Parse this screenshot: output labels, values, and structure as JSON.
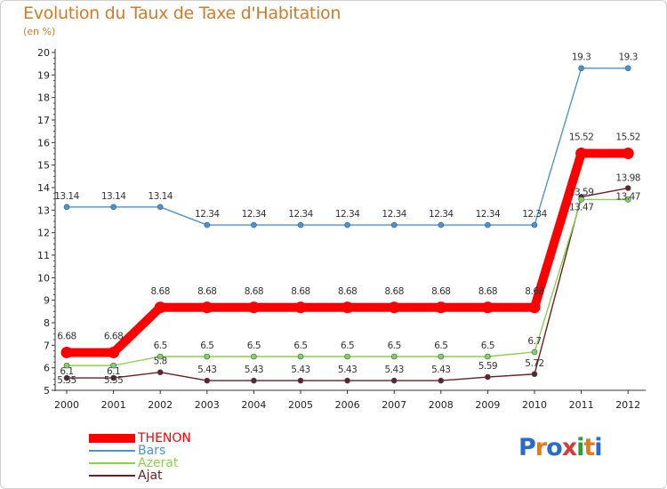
{
  "chart_data": {
    "type": "line",
    "title": "Evolution du Taux de Taxe d'Habitation",
    "subtitle": "(en %)",
    "xlabel": "",
    "ylabel": "",
    "x": [
      "2000",
      "2001",
      "2002",
      "2003",
      "2004",
      "2005",
      "2006",
      "2007",
      "2008",
      "2009",
      "2010",
      "2011",
      "2012"
    ],
    "ylim": [
      5,
      20
    ],
    "yticks": [
      5,
      6,
      7,
      8,
      9,
      10,
      11,
      12,
      13,
      14,
      15,
      16,
      17,
      18,
      19,
      20
    ],
    "series": [
      {
        "name": "THENON",
        "color": "#ff0000",
        "values": [
          6.68,
          6.68,
          8.68,
          8.68,
          8.68,
          8.68,
          8.68,
          8.68,
          8.68,
          8.68,
          8.68,
          15.52,
          15.52
        ],
        "labels": [
          "6.68",
          "6.68",
          "8.68",
          "8.68",
          "8.68",
          "8.68",
          "8.68",
          "8.68",
          "8.68",
          "8.68",
          "8.68",
          "15.52",
          "15.52"
        ]
      },
      {
        "name": "Bars",
        "color": "#4f93c9",
        "values": [
          13.14,
          13.14,
          13.14,
          12.34,
          12.34,
          12.34,
          12.34,
          12.34,
          12.34,
          12.34,
          12.34,
          19.3,
          19.3
        ],
        "labels": [
          "13.14",
          "13.14",
          "13.14",
          "12.34",
          "12.34",
          "12.34",
          "12.34",
          "12.34",
          "12.34",
          "12.34",
          "12.34",
          "19.3",
          "19.3"
        ]
      },
      {
        "name": "Azerat",
        "color": "#8ad24a",
        "values": [
          6.1,
          6.1,
          6.5,
          6.5,
          6.5,
          6.5,
          6.5,
          6.5,
          6.5,
          6.5,
          6.7,
          13.47,
          13.47
        ],
        "labels": [
          "6.1",
          "6.1",
          "6.5",
          "6.5",
          "6.5",
          "6.5",
          "6.5",
          "6.5",
          "6.5",
          "6.5",
          "6.7",
          "13.47",
          "13.47"
        ]
      },
      {
        "name": "Ajat",
        "color": "#6b1f1f",
        "values": [
          5.55,
          5.55,
          5.8,
          5.43,
          5.43,
          5.43,
          5.43,
          5.43,
          5.43,
          5.59,
          5.72,
          13.59,
          13.98
        ],
        "labels": [
          "5.55",
          "5.55",
          "5.8",
          "5.43",
          "5.43",
          "5.43",
          "5.43",
          "5.43",
          "5.43",
          "5.59",
          "5.72",
          "13.59",
          "13.98"
        ]
      }
    ],
    "legend": "bottom-left"
  },
  "legend": {
    "items": [
      {
        "name": "THENON",
        "color": "#ff0000"
      },
      {
        "name": "Bars",
        "color": "#4f93c9"
      },
      {
        "name": "Azerat",
        "color": "#8ad24a"
      },
      {
        "name": "Ajat",
        "color": "#6b1f1f"
      }
    ]
  },
  "logo": {
    "text": "Proxiti"
  }
}
